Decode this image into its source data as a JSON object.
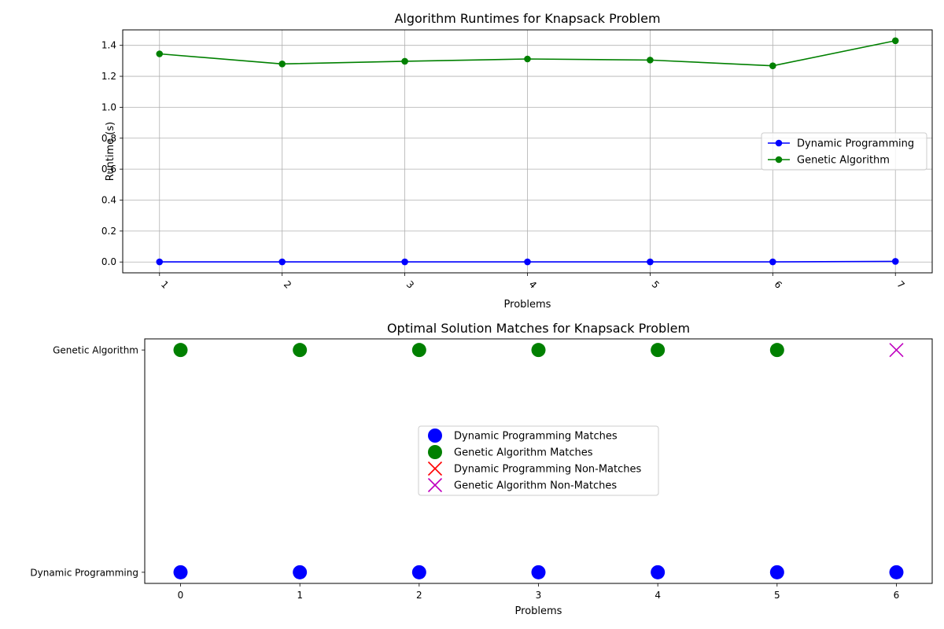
{
  "chart_data": [
    {
      "type": "line",
      "title": "Algorithm Runtimes for Knapsack Problem",
      "xlabel": "Problems",
      "ylabel": "Runtime (s)",
      "categories": [
        "1",
        "2",
        "3",
        "4",
        "5",
        "6",
        "7"
      ],
      "xlim": [
        0.7,
        7.3
      ],
      "ylim": [
        -0.07,
        1.5
      ],
      "yticks": [
        "0.0",
        "0.2",
        "0.4",
        "0.6",
        "0.8",
        "1.0",
        "1.2",
        "1.4"
      ],
      "ytick_values": [
        0.0,
        0.2,
        0.4,
        0.6,
        0.8,
        1.0,
        1.2,
        1.4
      ],
      "grid": true,
      "legend_position": "center-right",
      "series": [
        {
          "name": "Dynamic Programming",
          "color": "#0000ff",
          "values": [
            0.001,
            0.001,
            0.001,
            0.001,
            0.001,
            0.001,
            0.004
          ]
        },
        {
          "name": "Genetic Algorithm",
          "color": "#008000",
          "values": [
            1.345,
            1.28,
            1.297,
            1.312,
            1.305,
            1.268,
            1.43
          ]
        }
      ]
    },
    {
      "type": "scatter",
      "title": "Optimal Solution Matches for Knapsack Problem",
      "xlabel": "Problems",
      "ylabel": "",
      "x_ticks": [
        "0",
        "1",
        "2",
        "3",
        "4",
        "5",
        "6"
      ],
      "xlim": [
        -0.3,
        6.3
      ],
      "ylim": [
        -0.05,
        1.05
      ],
      "y_categories": [
        "Dynamic Programming",
        "Genetic Algorithm"
      ],
      "grid": false,
      "legend_position": "center",
      "series": [
        {
          "name": "Dynamic Programming Matches",
          "marker": "circle",
          "color": "#0000ff",
          "row": 0,
          "x": [
            0,
            1,
            2,
            3,
            4,
            5,
            6
          ]
        },
        {
          "name": "Genetic Algorithm Matches",
          "marker": "circle",
          "color": "#008000",
          "row": 1,
          "x": [
            0,
            1,
            2,
            3,
            4,
            5
          ]
        },
        {
          "name": "Dynamic Programming Non-Matches",
          "marker": "x",
          "color": "#ff0000",
          "row": 0,
          "x": []
        },
        {
          "name": "Genetic Algorithm Non-Matches",
          "marker": "x",
          "color": "#bf00bf",
          "row": 1,
          "x": [
            6
          ]
        }
      ]
    }
  ]
}
